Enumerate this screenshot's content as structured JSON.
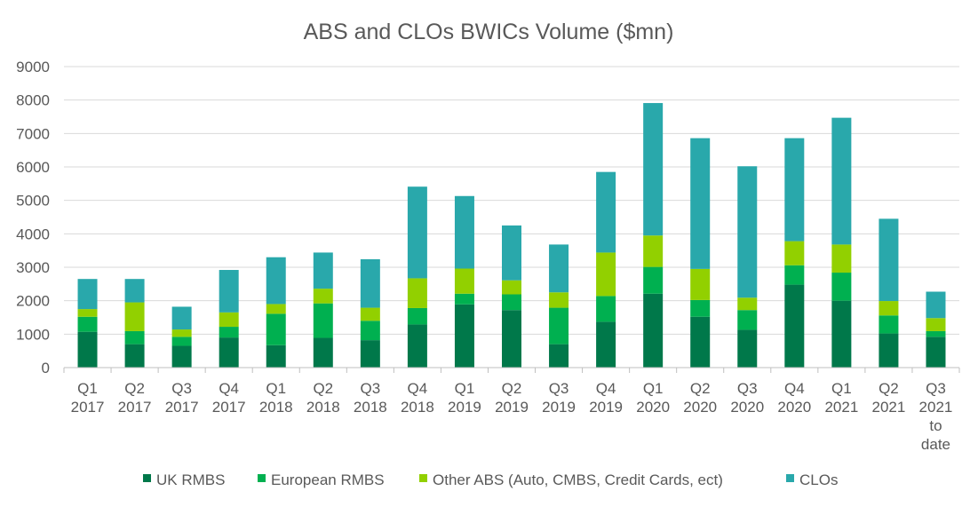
{
  "chart_data": {
    "type": "bar",
    "stacked": true,
    "title": "ABS and CLOs BWICs Volume ($mn)",
    "xlabel": "",
    "ylabel": "",
    "ylim": [
      0,
      9000
    ],
    "yticks": [
      "0",
      "1000",
      "2000",
      "3000",
      "4000",
      "5000",
      "6000",
      "7000",
      "8000",
      "9000"
    ],
    "grid": true,
    "legend_position": "bottom",
    "categories": [
      [
        "Q1",
        "2017"
      ],
      [
        "Q2",
        "2017"
      ],
      [
        "Q3",
        "2017"
      ],
      [
        "Q4",
        "2017"
      ],
      [
        "Q1",
        "2018"
      ],
      [
        "Q2",
        "2018"
      ],
      [
        "Q3",
        "2018"
      ],
      [
        "Q4",
        "2018"
      ],
      [
        "Q1",
        "2019"
      ],
      [
        "Q2",
        "2019"
      ],
      [
        "Q3",
        "2019"
      ],
      [
        "Q4",
        "2019"
      ],
      [
        "Q1",
        "2020"
      ],
      [
        "Q2",
        "2020"
      ],
      [
        "Q3",
        "2020"
      ],
      [
        "Q4",
        "2020"
      ],
      [
        "Q1",
        "2021"
      ],
      [
        "Q2",
        "2021"
      ],
      [
        "Q3",
        "2021",
        "to",
        "date"
      ]
    ],
    "series": [
      {
        "name": "UK RMBS",
        "color": "#00784A",
        "values": [
          1070,
          700,
          650,
          900,
          670,
          890,
          820,
          1290,
          1890,
          1720,
          700,
          1370,
          2210,
          1520,
          1130,
          2480,
          2000,
          1020,
          920
        ]
      },
      {
        "name": "European RMBS",
        "color": "#00B050",
        "values": [
          450,
          390,
          270,
          320,
          940,
          1030,
          580,
          490,
          320,
          470,
          1090,
          770,
          800,
          500,
          590,
          580,
          840,
          540,
          170
        ]
      },
      {
        "name": "Other ABS (Auto, CMBS, Credit Cards, ect)",
        "color": "#92D000",
        "values": [
          230,
          860,
          220,
          430,
          290,
          440,
          390,
          890,
          750,
          420,
          460,
          1300,
          940,
          930,
          370,
          720,
          840,
          430,
          390
        ]
      },
      {
        "name": "CLOs",
        "color": "#29A8AB",
        "values": [
          900,
          700,
          680,
          1270,
          1400,
          1080,
          1450,
          2740,
          2170,
          1640,
          1430,
          2410,
          3960,
          3910,
          3930,
          3080,
          3790,
          2460,
          790
        ]
      }
    ]
  }
}
